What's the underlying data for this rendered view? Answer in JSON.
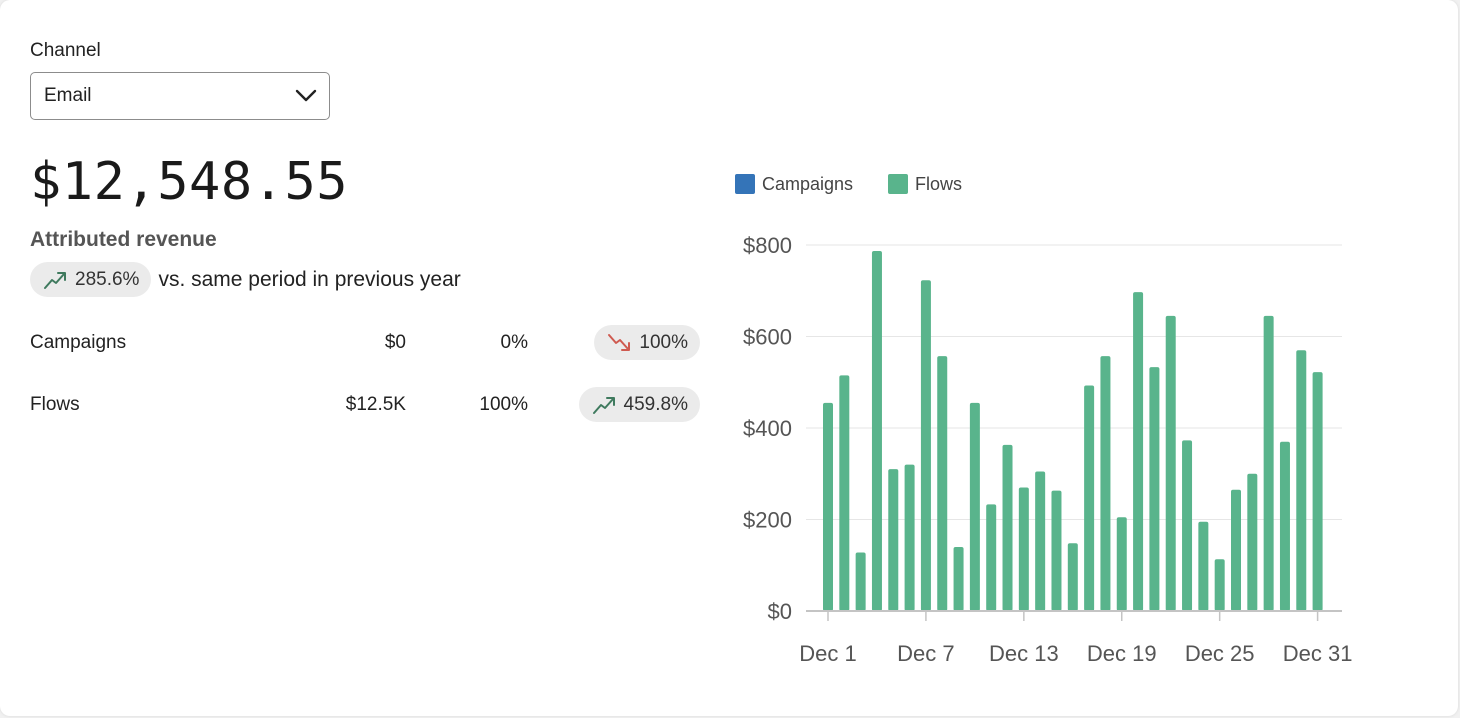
{
  "filter": {
    "label": "Channel",
    "selected": "Email"
  },
  "summary": {
    "amount": "$12,548.55",
    "label": "Attributed revenue",
    "change": "285.6%",
    "change_direction": "up",
    "comparison_text": "vs. same period in previous year"
  },
  "breakdown": [
    {
      "name": "Campaigns",
      "amount": "$0",
      "share": "0%",
      "change": "100%",
      "direction": "down"
    },
    {
      "name": "Flows",
      "amount": "$12.5K",
      "share": "100%",
      "change": "459.8%",
      "direction": "up"
    }
  ],
  "colors": {
    "campaigns": "#3474b8",
    "flows": "#59b48c",
    "trend_up": "#3f7a5e",
    "trend_down": "#cf5a50"
  },
  "icons": {
    "dropdown": "chevron-down-icon",
    "up": "trend-up-icon",
    "down": "trend-down-icon"
  },
  "chart_data": {
    "type": "bar",
    "legend": [
      "Campaigns",
      "Flows"
    ],
    "legend_position": "top-left",
    "categories": [
      "Dec 1",
      "Dec 2",
      "Dec 3",
      "Dec 4",
      "Dec 5",
      "Dec 6",
      "Dec 7",
      "Dec 8",
      "Dec 9",
      "Dec 10",
      "Dec 11",
      "Dec 12",
      "Dec 13",
      "Dec 14",
      "Dec 15",
      "Dec 16",
      "Dec 17",
      "Dec 18",
      "Dec 19",
      "Dec 20",
      "Dec 21",
      "Dec 22",
      "Dec 23",
      "Dec 24",
      "Dec 25",
      "Dec 26",
      "Dec 27",
      "Dec 28",
      "Dec 29",
      "Dec 30",
      "Dec 31"
    ],
    "x_tick_labels": [
      "Dec 1",
      "Dec 7",
      "Dec 13",
      "Dec 19",
      "Dec 25",
      "Dec 31"
    ],
    "series": [
      {
        "name": "Campaigns",
        "values": [
          0,
          0,
          0,
          0,
          0,
          0,
          0,
          0,
          0,
          0,
          0,
          0,
          0,
          0,
          0,
          0,
          0,
          0,
          0,
          0,
          0,
          0,
          0,
          0,
          0,
          0,
          0,
          0,
          0,
          0,
          0
        ]
      },
      {
        "name": "Flows",
        "values": [
          455,
          515,
          128,
          787,
          310,
          320,
          723,
          557,
          140,
          455,
          233,
          363,
          270,
          305,
          263,
          148,
          493,
          557,
          205,
          697,
          533,
          645,
          373,
          195,
          113,
          265,
          300,
          645,
          370,
          570,
          522
        ]
      }
    ],
    "y_ticks": [
      "$0",
      "$200",
      "$400",
      "$600",
      "$800"
    ],
    "ylim": [
      0,
      800
    ],
    "grid": true
  }
}
